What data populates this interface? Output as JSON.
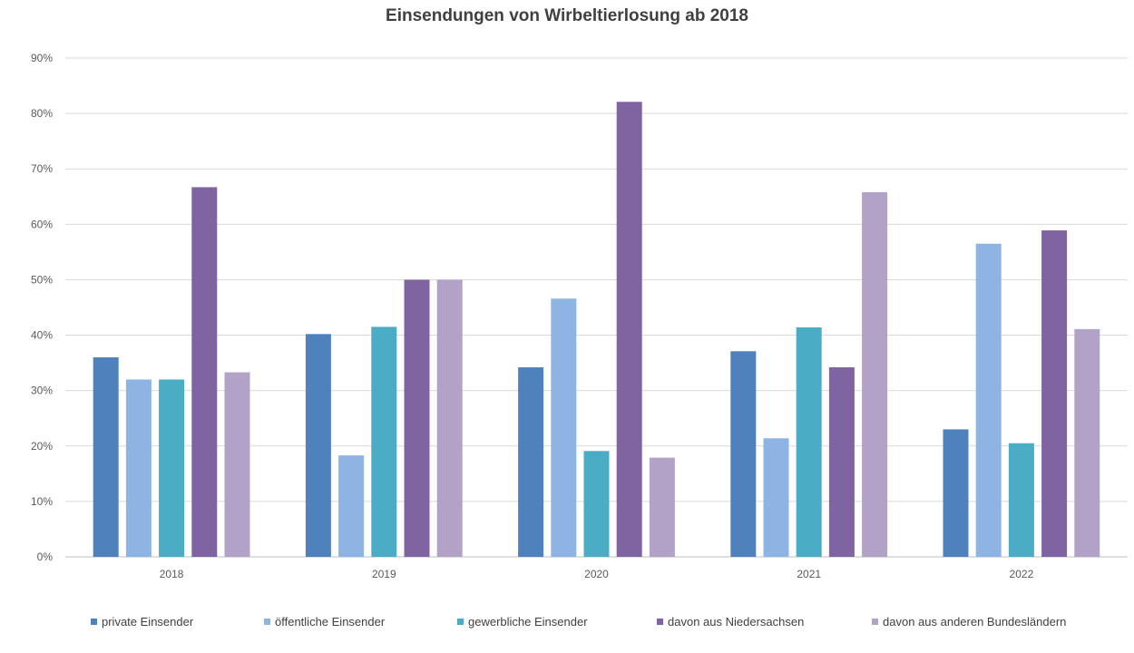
{
  "chart_data": {
    "type": "bar",
    "title": "Einsendungen von Wirbeltierlosung ab 2018",
    "categories": [
      "2018",
      "2019",
      "2020",
      "2021",
      "2022"
    ],
    "ylim": [
      0,
      90
    ],
    "y_ticks": [
      "0%",
      "10%",
      "20%",
      "30%",
      "40%",
      "50%",
      "60%",
      "70%",
      "80%",
      "90%"
    ],
    "grid": true,
    "legend_position": "bottom",
    "series": [
      {
        "name": "private Einsender",
        "color": "#4f81bd",
        "values": [
          36.0,
          40.2,
          34.2,
          37.1,
          23.0
        ]
      },
      {
        "name": "öffentliche Einsender",
        "color": "#8eb4e3",
        "values": [
          32.0,
          18.3,
          46.6,
          21.4,
          56.5
        ]
      },
      {
        "name": "gewerbliche Einsender",
        "color": "#4bacc6",
        "values": [
          32.0,
          41.5,
          19.1,
          41.4,
          20.5
        ]
      },
      {
        "name": "davon aus Niedersachsen",
        "color": "#8064a2",
        "values": [
          66.7,
          50.0,
          82.1,
          34.2,
          58.9
        ]
      },
      {
        "name": "davon aus anderen Bundesländern",
        "color": "#b2a2c7",
        "values": [
          33.3,
          50.0,
          17.9,
          65.8,
          41.1
        ]
      }
    ]
  }
}
